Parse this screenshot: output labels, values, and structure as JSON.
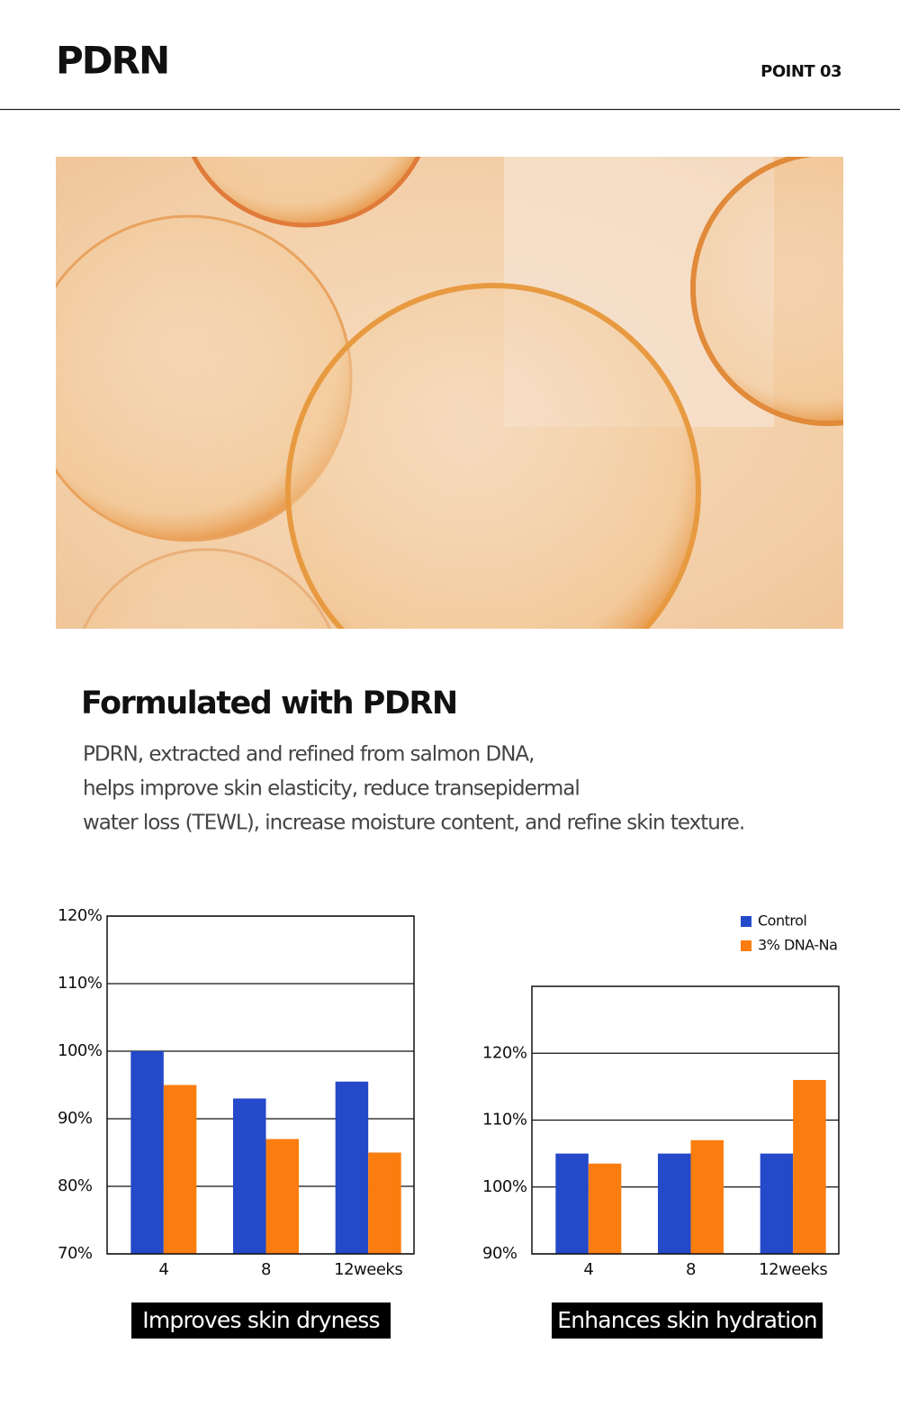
{
  "header": {
    "title": "PDRN",
    "point": "POINT 03"
  },
  "section": {
    "heading": "Formulated with PDRN",
    "body": [
      "PDRN, extracted and refined from salmon DNA,",
      "helps improve skin elasticity, reduce transepidermal",
      "water loss (TEWL), increase moisture content, and refine skin texture."
    ]
  },
  "chart_data": [
    {
      "type": "bar",
      "caption": "Improves skin dryness",
      "categories": [
        "4",
        "8",
        "12weeks"
      ],
      "series": [
        {
          "color": "#2449c9",
          "values": [
            100,
            93,
            95.5
          ]
        },
        {
          "color": "#fb7d0f",
          "values": [
            95,
            87,
            85
          ]
        }
      ],
      "ylim": [
        70,
        120
      ],
      "yticks": [
        {
          "value": 70,
          "label": "70%"
        },
        {
          "value": 80,
          "label": "80%"
        },
        {
          "value": 90,
          "label": "90%"
        },
        {
          "value": 100,
          "label": "100%"
        },
        {
          "value": 110,
          "label": "110%"
        },
        {
          "value": 120,
          "label": "120%"
        }
      ],
      "grid": true
    },
    {
      "type": "bar",
      "caption": "Enhances skin hydration",
      "categories": [
        "4",
        "8",
        "12weeks"
      ],
      "series": [
        {
          "name": "Control",
          "color": "#2449c9",
          "values": [
            105,
            105,
            105
          ]
        },
        {
          "name": "3% DNA-Na",
          "color": "#fb7d0f",
          "values": [
            103.5,
            107,
            116
          ]
        }
      ],
      "ylim": [
        90,
        130
      ],
      "yticks": [
        {
          "value": 90,
          "label": "90%"
        },
        {
          "value": 100,
          "label": "100%"
        },
        {
          "value": 110,
          "label": "110%"
        },
        {
          "value": 120,
          "label": "120%"
        }
      ],
      "grid": true,
      "legend": "top-right"
    }
  ]
}
